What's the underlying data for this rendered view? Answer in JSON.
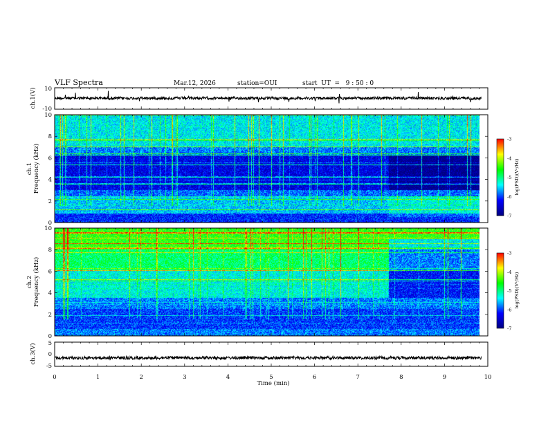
{
  "header": {
    "title": "VLF Spectra",
    "date": "Mar.12, 2026",
    "station": "station=OUI",
    "start": "start  UT  =   9 : 50 : 0"
  },
  "chart_data": [
    {
      "name": "ch1-waveform",
      "type": "line",
      "ylabel": "ch.1(V)",
      "ylim": [
        -10,
        10
      ],
      "tick_labels": [
        "10",
        "-10"
      ],
      "approx_level": 0.3
    },
    {
      "name": "ch1-spectrogram",
      "type": "heatmap",
      "ylabel": "ch.1",
      "ylabel2": "Frequency (kHz)",
      "ylim": [
        0,
        10
      ],
      "tick_labels": [
        "0",
        "2",
        "4",
        "6",
        "8",
        "10"
      ],
      "color_range": [
        -7,
        -3
      ],
      "colorbar_label": "log(PSD)(V²/Hz)",
      "colorbar_ticks": [
        "-3",
        "-4",
        "-5",
        "-6",
        "-7"
      ],
      "transition_min": 7.7
    },
    {
      "name": "ch2-spectrogram",
      "type": "heatmap",
      "ylabel": "ch.2",
      "ylabel2": "Frequency (kHz)",
      "ylim": [
        0,
        10
      ],
      "tick_labels": [
        "0",
        "2",
        "4",
        "6",
        "8",
        "10"
      ],
      "color_range": [
        -7,
        -3
      ],
      "colorbar_label": "log(PSD)(V²/Hz)",
      "colorbar_ticks": [
        "-3",
        "-4",
        "-5",
        "-6",
        "-7"
      ],
      "transition_min": 7.7
    },
    {
      "name": "ch3-waveform",
      "type": "line",
      "ylabel": "ch.3(V)",
      "ylim": [
        -5,
        5
      ],
      "tick_labels": [
        "5",
        "0",
        "-5"
      ],
      "approx_level": -1.5
    }
  ],
  "x_axis": {
    "label": "Time (min)",
    "range": [
      0,
      10
    ],
    "data_end": 9.85,
    "tick_labels": [
      "0",
      "1",
      "2",
      "3",
      "4",
      "5",
      "6",
      "7",
      "8",
      "9",
      "10"
    ]
  },
  "colors": {
    "colormap": [
      "#000080",
      "#0000ff",
      "#00ffff",
      "#00ff00",
      "#ffff00",
      "#ff0000"
    ],
    "axis": "#000000",
    "trace": "#000000"
  }
}
